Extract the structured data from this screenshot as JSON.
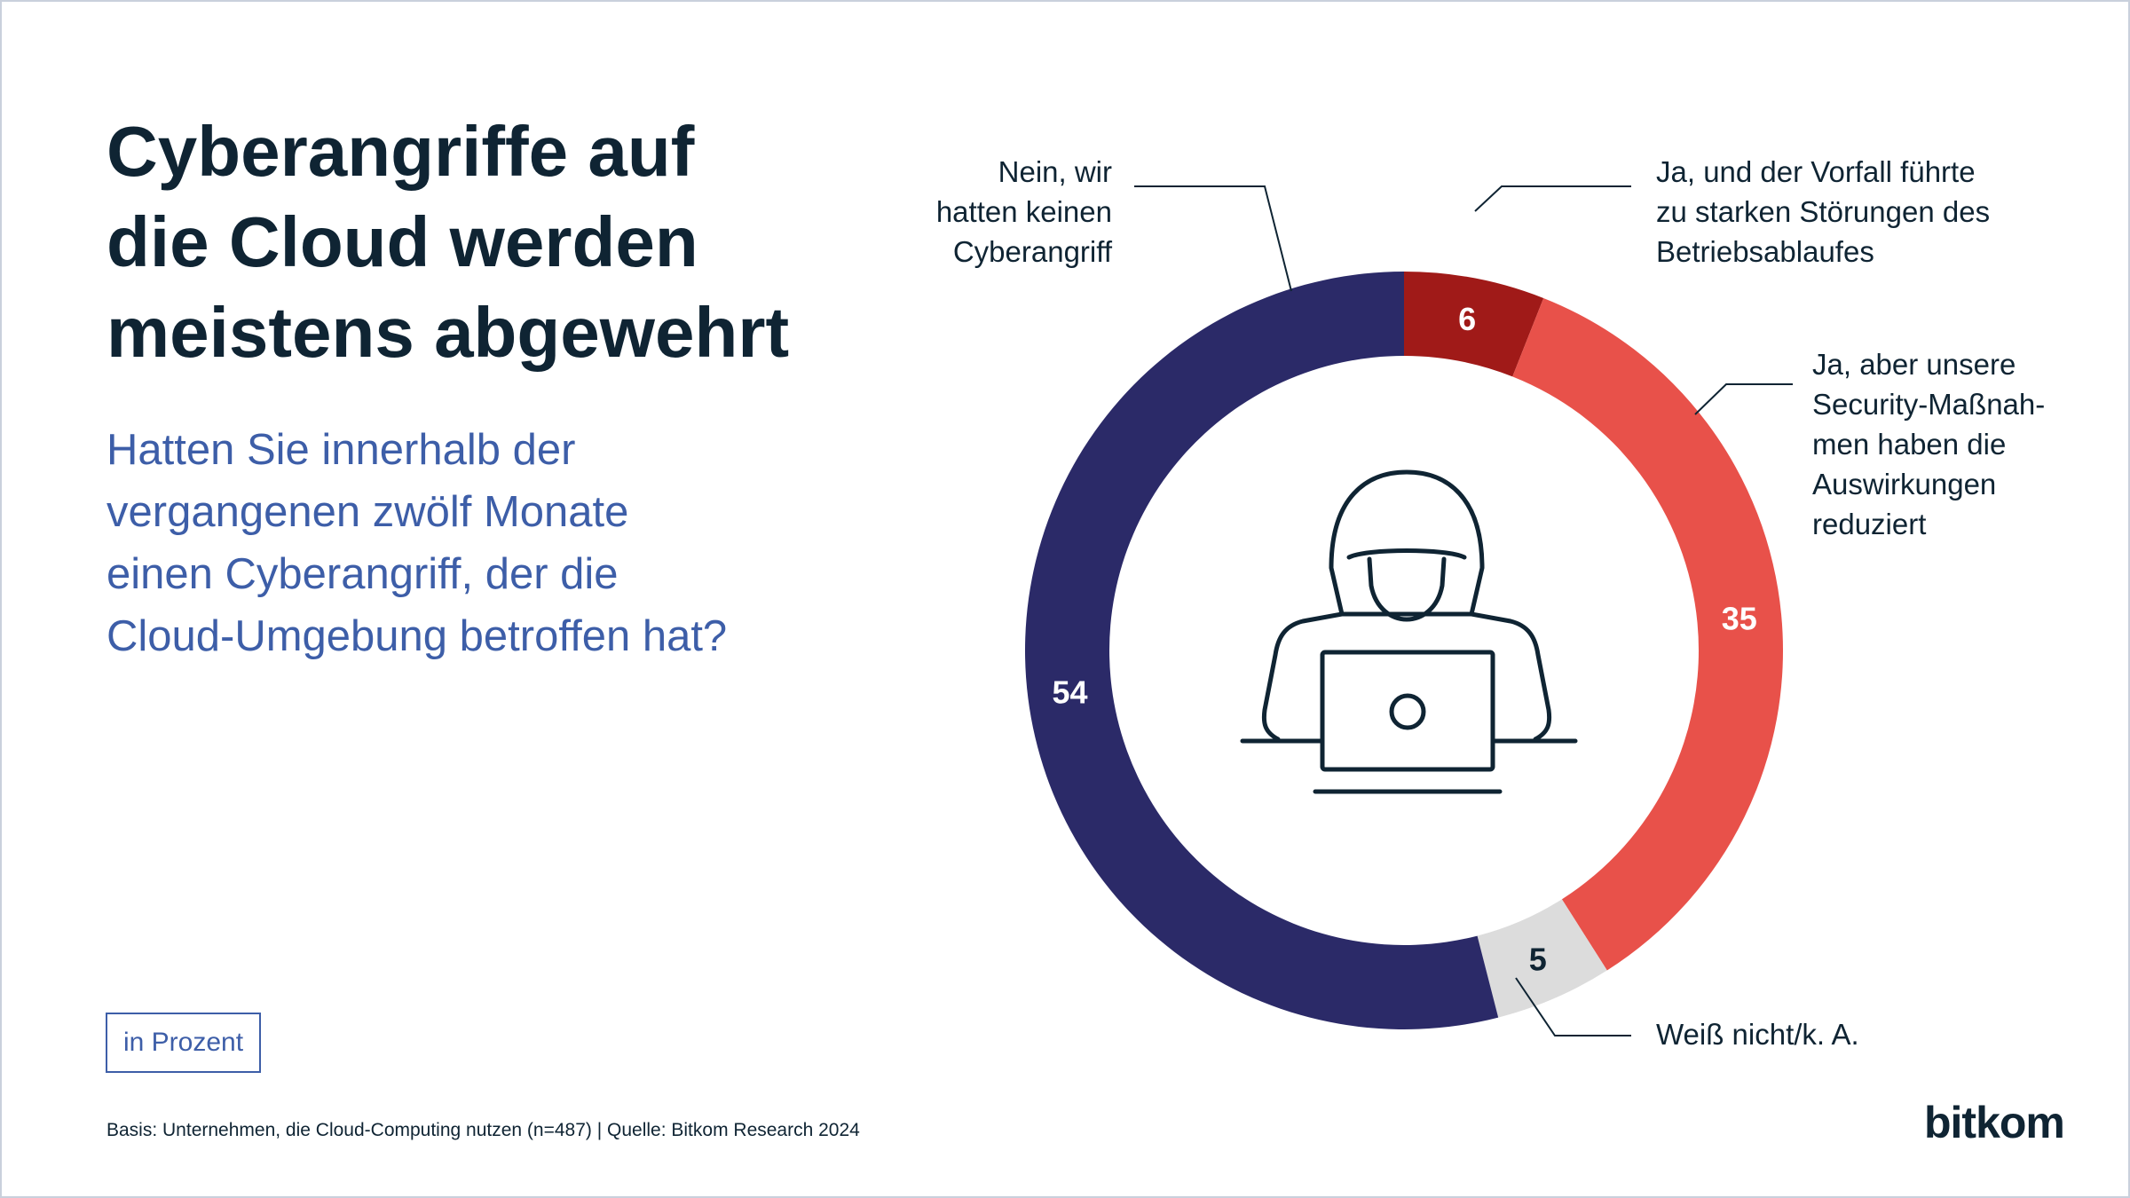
{
  "header": {
    "title": "Cyberangriffe auf\ndie Cloud werden\nmeistens abgewehrt",
    "question": "Hatten Sie innerhalb der\nvergangenen zwölf Monate\neinen Cyberangriff, der die\nCloud-Umgebung betroffen hat?"
  },
  "unit_badge": "in Prozent",
  "footer": {
    "source": "Basis: Unternehmen, die Cloud-Computing nutzen (n=487) | Quelle: Bitkom Research 2024"
  },
  "logo": {
    "text": "bitkom"
  },
  "chart_data": {
    "type": "pie",
    "style": "donut",
    "unit": "%",
    "center_icon": "hacker-laptop-icon",
    "categories": [
      "Ja, und der Vorfall führte zu starken Störungen des Betriebsablaufes",
      "Ja, aber unsere Security-Maßnahmen haben die Auswirkungen reduziert",
      "Weiß nicht/k. A.",
      "Nein, wir hatten keinen Cyberangriff"
    ],
    "values": [
      6,
      35,
      5,
      54
    ],
    "colors": [
      "#a01a18",
      "#e8514a",
      "#dcdcdc",
      "#2b2a68"
    ],
    "label_lines": [
      [
        "Ja, und der Vorfall führte",
        "zu starken Störungen des",
        "Betriebsablaufes"
      ],
      [
        "Ja, aber unsere",
        "Security-Maßnah-",
        "men haben die",
        "Auswirkungen",
        "reduziert"
      ],
      [
        "Weiß nicht/k. A."
      ],
      [
        "Nein, wir",
        "hatten keinen",
        "Cyberangriff"
      ]
    ],
    "value_label_colors": [
      "#ffffff",
      "#ffffff",
      "#0f2433",
      "#ffffff"
    ]
  }
}
